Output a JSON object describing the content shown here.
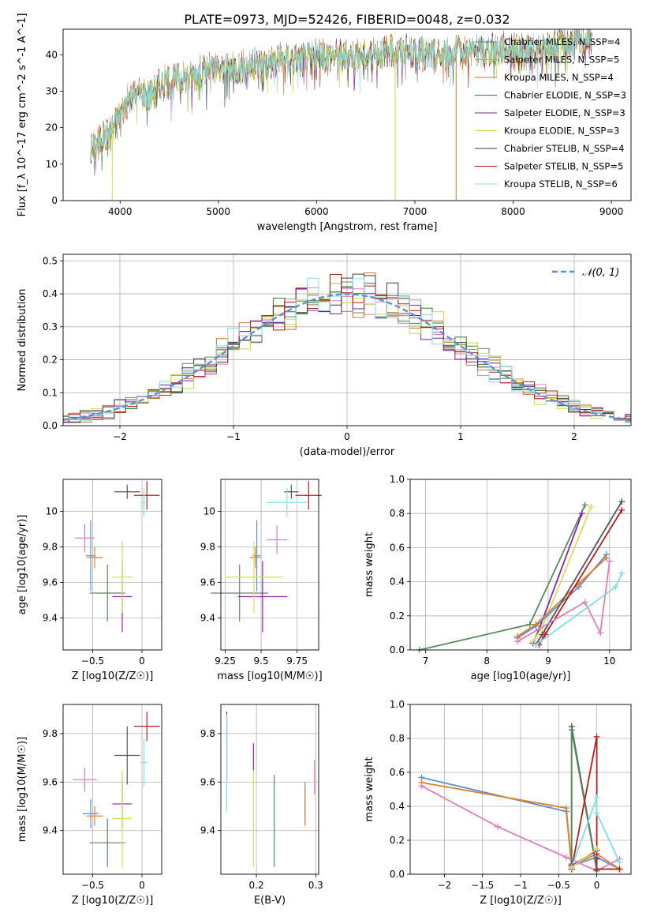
{
  "figure_title": "PLATE=0973, MJD=52426, FIBERID=0048, z=0.032",
  "colors": {
    "chabrier_miles": "#4a4a4a",
    "salpeter_miles": "#e07fbd",
    "kroupa_miles": "#c9762a",
    "chabrier_elodie": "#2e7d32",
    "salpeter_elodie": "#7b1fa2",
    "kroupa_elodie": "#cddc39",
    "chabrier_stelib": "#3a3a3a",
    "salpeter_stelib": "#b71c1c",
    "kroupa_stelib": "#80deea",
    "normal": "#5b8fd9",
    "blue_line": "#5b8fd9",
    "orange_line": "#e08020",
    "pink_line": "#e07fbd",
    "cyan_line": "#80deea",
    "gray_line": "#555555",
    "red_line": "#b71c1c",
    "green_line": "#5a8a5a",
    "purple_line": "#8e24aa",
    "yellow_line": "#d4e157"
  },
  "chart_data": [
    {
      "id": "spectrum",
      "type": "line",
      "title": "PLATE=0973, MJD=52426, FIBERID=0048, z=0.032",
      "xlabel": "wavelength [Angstrom, rest frame]",
      "ylabel": "Flux [f_λ 10^-17 erg cm^-2 s^-1 A^-1]",
      "xlim": [
        3420,
        9200
      ],
      "ylim": [
        0,
        47
      ],
      "xticks": [
        4000,
        5000,
        6000,
        7000,
        8000,
        9000
      ],
      "yticks": [
        0,
        10,
        20,
        30,
        40
      ],
      "grid": false,
      "legend_position": "right",
      "series": [
        {
          "name": "Chabrier MILES, N_SSP=4",
          "color": "#777777"
        },
        {
          "name": "Salpeter MILES, N_SSP=5",
          "color": "#e07fbd"
        },
        {
          "name": "Kroupa MILES, N_SSP=4",
          "color": "#c9762a"
        },
        {
          "name": "Chabrier ELODIE, N_SSP=3",
          "color": "#2e7d32"
        },
        {
          "name": "Salpeter ELODIE, N_SSP=3",
          "color": "#7b1fa2"
        },
        {
          "name": "Kroupa ELODIE, N_SSP=3",
          "color": "#cddc39"
        },
        {
          "name": "Chabrier STELIB, N_SSP=4",
          "color": "#3a3a3a"
        },
        {
          "name": "Salpeter STELIB, N_SSP=5",
          "color": "#b71c1c"
        },
        {
          "name": "Kroupa STELIB, N_SSP=6",
          "color": "#80deea"
        }
      ],
      "continuum": [
        [
          3700,
          14
        ],
        [
          3800,
          17
        ],
        [
          3900,
          19
        ],
        [
          4000,
          24
        ],
        [
          4100,
          28
        ],
        [
          4200,
          30
        ],
        [
          4300,
          29
        ],
        [
          4400,
          32
        ],
        [
          4500,
          33
        ],
        [
          4700,
          34
        ],
        [
          4900,
          36
        ],
        [
          5100,
          36
        ],
        [
          5300,
          37
        ],
        [
          5500,
          38
        ],
        [
          5700,
          39
        ],
        [
          5900,
          39
        ],
        [
          6100,
          40
        ],
        [
          6300,
          40
        ],
        [
          6500,
          40
        ],
        [
          6700,
          41
        ],
        [
          6900,
          41
        ],
        [
          7100,
          40
        ],
        [
          7300,
          40
        ],
        [
          7500,
          41
        ],
        [
          7700,
          41
        ],
        [
          7900,
          42
        ],
        [
          8100,
          41
        ],
        [
          8300,
          41
        ],
        [
          8500,
          43
        ],
        [
          8700,
          44
        ],
        [
          8800,
          45
        ]
      ],
      "drops": [
        {
          "x": 3920,
          "color": "#cddc39"
        },
        {
          "x": 6800,
          "color": "#cddc39"
        },
        {
          "x": 7420,
          "color": "#c9762a"
        }
      ]
    },
    {
      "id": "residuals",
      "type": "histogram",
      "xlabel": "(data-model)/error",
      "ylabel": "Normed distribution",
      "xlim": [
        -2.5,
        2.5
      ],
      "ylim": [
        0,
        0.52
      ],
      "xticks": [
        -2,
        -1,
        0,
        1,
        2
      ],
      "yticks": [
        0.0,
        0.1,
        0.2,
        0.3,
        0.4,
        0.5
      ],
      "grid": true,
      "legend_position": "top-right",
      "normal_label": "𝒩(0, 1)",
      "bin_width": 0.1
    },
    {
      "id": "age_vs_Z",
      "type": "scatter",
      "xlabel": "Z [log10(Z/Z☉)]",
      "ylabel": "age [log10(age/yr)]",
      "xlim": [
        -0.8,
        0.2
      ],
      "ylim": [
        9.22,
        10.18
      ],
      "xticks": [
        -0.5,
        0.0
      ],
      "yticks": [
        9.4,
        9.6,
        9.8,
        10.0
      ],
      "grid": true,
      "points": [
        {
          "x": -0.52,
          "y": 9.75,
          "xerr": 0.05,
          "yerr": 0.2,
          "color": "#5b8fd9"
        },
        {
          "x": -0.48,
          "y": 9.74,
          "xerr": 0.08,
          "yerr": 0.06,
          "color": "#e08020"
        },
        {
          "x": -0.58,
          "y": 9.85,
          "xerr": 0.1,
          "yerr": 0.08,
          "color": "#e07fbd"
        },
        {
          "x": -0.35,
          "y": 9.54,
          "xerr": 0.18,
          "yerr": 0.16,
          "color": "#5a8a5a"
        },
        {
          "x": -0.2,
          "y": 9.52,
          "xerr": 0.1,
          "yerr": 0.2,
          "color": "#8e24aa"
        },
        {
          "x": -0.2,
          "y": 9.63,
          "xerr": 0.1,
          "yerr": 0.2,
          "color": "#d4e157"
        },
        {
          "x": -0.15,
          "y": 10.11,
          "xerr": 0.13,
          "yerr": 0.04,
          "color": "#555555"
        },
        {
          "x": 0.05,
          "y": 10.09,
          "xerr": 0.13,
          "yerr": 0.08,
          "color": "#b71c1c"
        },
        {
          "x": 0.02,
          "y": 10.05,
          "xerr": 0.03,
          "yerr": 0.08,
          "color": "#80deea"
        }
      ]
    },
    {
      "id": "age_vs_mass",
      "type": "scatter",
      "xlabel": "mass [log10(M/M☉)]",
      "ylabel": "",
      "xlim": [
        9.22,
        9.9
      ],
      "ylim": [
        9.22,
        10.18
      ],
      "xticks": [
        9.25,
        9.5,
        9.75
      ],
      "yticks": [
        9.4,
        9.6,
        9.8,
        10.0
      ],
      "grid": true,
      "points": [
        {
          "x": 9.47,
          "y": 9.75,
          "xerr": 0.03,
          "yerr": 0.2,
          "color": "#5b8fd9"
        },
        {
          "x": 9.46,
          "y": 9.74,
          "xerr": 0.04,
          "yerr": 0.06,
          "color": "#e08020"
        },
        {
          "x": 9.61,
          "y": 9.84,
          "xerr": 0.07,
          "yerr": 0.08,
          "color": "#e07fbd"
        },
        {
          "x": 9.35,
          "y": 9.54,
          "xerr": 0.2,
          "yerr": 0.16,
          "color": "#5a8a5a"
        },
        {
          "x": 9.51,
          "y": 9.52,
          "xerr": 0.17,
          "yerr": 0.2,
          "color": "#8e24aa"
        },
        {
          "x": 9.45,
          "y": 9.63,
          "xerr": 0.2,
          "yerr": 0.2,
          "color": "#d4e157"
        },
        {
          "x": 9.71,
          "y": 10.11,
          "xerr": 0.05,
          "yerr": 0.04,
          "color": "#555555"
        },
        {
          "x": 9.83,
          "y": 10.09,
          "xerr": 0.09,
          "yerr": 0.08,
          "color": "#b71c1c"
        },
        {
          "x": 9.68,
          "y": 10.05,
          "xerr": 0.14,
          "yerr": 0.08,
          "color": "#80deea"
        }
      ]
    },
    {
      "id": "weight_vs_age",
      "type": "line",
      "xlabel": "age [log10(age/yr)]",
      "ylabel": "mass weight",
      "xlim": [
        6.75,
        10.35
      ],
      "ylim": [
        0,
        1.0
      ],
      "xticks": [
        7,
        8,
        9,
        10
      ],
      "yticks": [
        0.0,
        0.2,
        0.4,
        0.6,
        0.8,
        1.0
      ],
      "grid": true,
      "series": [
        {
          "color": "#5a8a5a",
          "x": [
            6.9,
            8.7,
            9.6
          ],
          "y": [
            0.0,
            0.15,
            0.85
          ]
        },
        {
          "color": "#8e24aa",
          "x": [
            8.75,
            8.85,
            9.55
          ],
          "y": [
            0.04,
            0.12,
            0.8
          ]
        },
        {
          "color": "#d4e157",
          "x": [
            8.75,
            8.9,
            9.7
          ],
          "y": [
            0.05,
            0.13,
            0.84
          ]
        },
        {
          "color": "#5b8fd9",
          "x": [
            8.5,
            8.8,
            9.5,
            9.95
          ],
          "y": [
            0.07,
            0.14,
            0.37,
            0.56
          ]
        },
        {
          "color": "#e08020",
          "x": [
            8.5,
            8.8,
            9.5,
            9.95
          ],
          "y": [
            0.08,
            0.15,
            0.39,
            0.54
          ]
        },
        {
          "color": "#555555",
          "x": [
            8.8,
            8.9,
            10.2
          ],
          "y": [
            0.03,
            0.09,
            0.87
          ]
        },
        {
          "color": "#b71c1c",
          "x": [
            8.85,
            8.95,
            10.2
          ],
          "y": [
            0.03,
            0.09,
            0.82
          ]
        },
        {
          "color": "#e07fbd",
          "x": [
            8.5,
            9.6,
            9.85,
            10.0
          ],
          "y": [
            0.05,
            0.28,
            0.1,
            0.52
          ]
        },
        {
          "color": "#80deea",
          "x": [
            8.8,
            10.1,
            10.2
          ],
          "y": [
            0.03,
            0.37,
            0.45
          ]
        }
      ]
    },
    {
      "id": "mass_vs_Z",
      "type": "scatter",
      "xlabel": "Z [log10(Z/Z☉)]",
      "ylabel": "mass [log10(M/M☉)]",
      "xlim": [
        -0.8,
        0.2
      ],
      "ylim": [
        9.22,
        9.92
      ],
      "xticks": [
        -0.5,
        0.0
      ],
      "yticks": [
        9.4,
        9.6,
        9.8
      ],
      "grid": true,
      "points": [
        {
          "x": -0.52,
          "y": 9.47,
          "xerr": 0.08,
          "yerr": 0.06,
          "color": "#5b8fd9"
        },
        {
          "x": -0.48,
          "y": 9.46,
          "xerr": 0.08,
          "yerr": 0.04,
          "color": "#e08020"
        },
        {
          "x": -0.58,
          "y": 9.61,
          "xerr": 0.12,
          "yerr": 0.05,
          "color": "#e07fbd"
        },
        {
          "x": -0.35,
          "y": 9.35,
          "xerr": 0.18,
          "yerr": 0.1,
          "color": "#5a8a5a"
        },
        {
          "x": -0.2,
          "y": 9.51,
          "xerr": 0.1,
          "yerr": 0.1,
          "color": "#8e24aa"
        },
        {
          "x": -0.2,
          "y": 9.45,
          "xerr": 0.1,
          "yerr": 0.2,
          "color": "#d4e157"
        },
        {
          "x": -0.15,
          "y": 9.71,
          "xerr": 0.13,
          "yerr": 0.12,
          "color": "#555555"
        },
        {
          "x": 0.05,
          "y": 9.83,
          "xerr": 0.13,
          "yerr": 0.06,
          "color": "#b71c1c"
        },
        {
          "x": 0.02,
          "y": 9.68,
          "xerr": 0.03,
          "yerr": 0.1,
          "color": "#80deea"
        }
      ]
    },
    {
      "id": "mass_vs_ebv",
      "type": "scatter",
      "xlabel": "E(B-V)",
      "ylabel": "",
      "xlim": [
        0.14,
        0.305
      ],
      "ylim": [
        9.22,
        9.92
      ],
      "xticks": [
        0.2,
        0.3
      ],
      "yticks": [
        9.4,
        9.6,
        9.8
      ],
      "grid": true,
      "points": [
        {
          "x": 0.15,
          "y": 9.75,
          "yerr": 0.14,
          "color": "#b71c1c"
        },
        {
          "x": 0.15,
          "y": 9.68,
          "yerr": 0.2,
          "color": "#80deea"
        },
        {
          "x": 0.195,
          "y": 9.7,
          "yerr": 0.06,
          "color": "#8e24aa"
        },
        {
          "x": 0.195,
          "y": 9.45,
          "yerr": 0.2,
          "color": "#d4e157"
        },
        {
          "x": 0.23,
          "y": 9.44,
          "yerr": 0.19,
          "color": "#5a8a5a"
        },
        {
          "x": 0.282,
          "y": 9.52,
          "yerr": 0.08,
          "color": "#5b8fd9"
        },
        {
          "x": 0.282,
          "y": 9.5,
          "yerr": 0.08,
          "color": "#e08020"
        },
        {
          "x": 0.298,
          "y": 9.62,
          "yerr": 0.07,
          "color": "#e07fbd"
        }
      ]
    },
    {
      "id": "weight_vs_Z",
      "type": "line",
      "xlabel": "Z [log10(Z/Z☉)]",
      "ylabel": "mass weight",
      "xlim": [
        -2.45,
        0.45
      ],
      "ylim": [
        0,
        1.0
      ],
      "xticks": [
        -2.0,
        -1.5,
        -1.0,
        -0.5,
        0.0
      ],
      "yticks": [
        0.0,
        0.2,
        0.4,
        0.6,
        0.8,
        1.0
      ],
      "grid": true,
      "series": [
        {
          "color": "#5b8fd9",
          "x": [
            -2.3,
            -0.4,
            -0.33,
            0.0,
            0.3
          ],
          "y": [
            0.57,
            0.37,
            0.05,
            0.1,
            0.03
          ]
        },
        {
          "color": "#e08020",
          "x": [
            -2.3,
            -0.4,
            -0.33,
            0.0,
            0.3
          ],
          "y": [
            0.54,
            0.39,
            0.05,
            0.12,
            0.03
          ]
        },
        {
          "color": "#e07fbd",
          "x": [
            -2.3,
            -1.3,
            -0.4,
            0.0,
            0.3
          ],
          "y": [
            0.52,
            0.28,
            0.1,
            0.02,
            0.09
          ]
        },
        {
          "color": "#555555",
          "x": [
            -0.33,
            -0.33,
            0.0,
            0.0
          ],
          "y": [
            0.06,
            0.87,
            0.03,
            0.09
          ]
        },
        {
          "color": "#5a8a5a",
          "x": [
            -0.33,
            -0.33,
            0.0
          ],
          "y": [
            0.04,
            0.85,
            0.02
          ]
        },
        {
          "color": "#b71c1c",
          "x": [
            -0.33,
            0.0,
            0.0,
            0.3
          ],
          "y": [
            0.03,
            0.81,
            0.03,
            0.03
          ]
        },
        {
          "color": "#80deea",
          "x": [
            -0.33,
            0.0,
            0.0,
            0.3
          ],
          "y": [
            0.04,
            0.45,
            0.36,
            0.07
          ]
        },
        {
          "color": "#8e24aa",
          "x": [
            -0.33,
            0.0
          ],
          "y": [
            0.05,
            0.14
          ]
        },
        {
          "color": "#d4e157",
          "x": [
            -0.33,
            0.0
          ],
          "y": [
            0.04,
            0.15
          ]
        }
      ]
    }
  ]
}
